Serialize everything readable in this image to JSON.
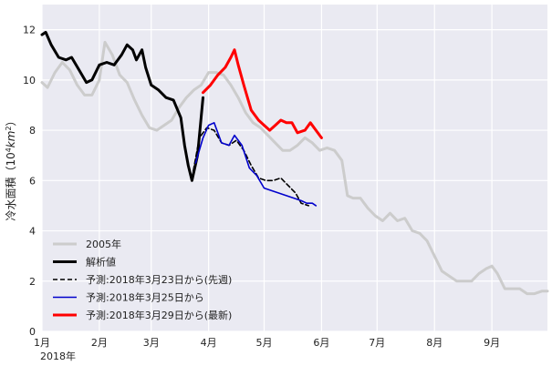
{
  "chart_data": {
    "type": "line",
    "ylabel": "冷水面積（10⁴km²）",
    "ylabel_parts": {
      "prefix": "冷水面積（10",
      "exp": "4",
      "unit": "km",
      "unit_exp": "2",
      "suffix": "）"
    },
    "ylim": [
      0,
      13
    ],
    "yticks": [
      0,
      2,
      4,
      6,
      8,
      10,
      12
    ],
    "x_domain": [
      "2018-01-01",
      "2018-10-01"
    ],
    "xticks": [
      {
        "date": "2018-01-01",
        "label": "1月"
      },
      {
        "date": "2018-02-01",
        "label": "2月"
      },
      {
        "date": "2018-03-01",
        "label": "3月"
      },
      {
        "date": "2018-04-01",
        "label": "4月"
      },
      {
        "date": "2018-05-01",
        "label": "5月"
      },
      {
        "date": "2018-06-01",
        "label": "6月"
      },
      {
        "date": "2018-07-01",
        "label": "7月"
      },
      {
        "date": "2018-08-01",
        "label": "8月"
      },
      {
        "date": "2018-09-01",
        "label": "9月"
      }
    ],
    "year_label": "2018年",
    "grid": true,
    "legend_position": "bottom-left",
    "series": [
      {
        "name": "2005年",
        "color": "#cccccc",
        "width": 3,
        "dash": "",
        "points": [
          [
            "2018-01-01",
            9.9
          ],
          [
            "2018-01-04",
            9.7
          ],
          [
            "2018-01-08",
            10.3
          ],
          [
            "2018-01-12",
            10.7
          ],
          [
            "2018-01-16",
            10.4
          ],
          [
            "2018-01-20",
            9.8
          ],
          [
            "2018-01-24",
            9.4
          ],
          [
            "2018-01-28",
            9.4
          ],
          [
            "2018-02-01",
            10.0
          ],
          [
            "2018-02-04",
            11.5
          ],
          [
            "2018-02-08",
            11.0
          ],
          [
            "2018-02-12",
            10.2
          ],
          [
            "2018-02-16",
            9.9
          ],
          [
            "2018-02-20",
            9.2
          ],
          [
            "2018-02-24",
            8.6
          ],
          [
            "2018-02-28",
            8.1
          ],
          [
            "2018-03-04",
            8.0
          ],
          [
            "2018-03-08",
            8.2
          ],
          [
            "2018-03-12",
            8.4
          ],
          [
            "2018-03-16",
            8.9
          ],
          [
            "2018-03-20",
            9.3
          ],
          [
            "2018-03-24",
            9.6
          ],
          [
            "2018-03-28",
            9.8
          ],
          [
            "2018-04-01",
            10.3
          ],
          [
            "2018-04-05",
            10.3
          ],
          [
            "2018-04-09",
            10.2
          ],
          [
            "2018-04-13",
            9.8
          ],
          [
            "2018-04-17",
            9.3
          ],
          [
            "2018-04-21",
            8.7
          ],
          [
            "2018-04-25",
            8.3
          ],
          [
            "2018-04-29",
            8.1
          ],
          [
            "2018-05-03",
            7.8
          ],
          [
            "2018-05-07",
            7.5
          ],
          [
            "2018-05-11",
            7.2
          ],
          [
            "2018-05-15",
            7.2
          ],
          [
            "2018-05-19",
            7.4
          ],
          [
            "2018-05-23",
            7.7
          ],
          [
            "2018-05-27",
            7.5
          ],
          [
            "2018-05-31",
            7.2
          ],
          [
            "2018-06-04",
            7.3
          ],
          [
            "2018-06-08",
            7.2
          ],
          [
            "2018-06-12",
            6.8
          ],
          [
            "2018-06-15",
            5.4
          ],
          [
            "2018-06-18",
            5.3
          ],
          [
            "2018-06-22",
            5.3
          ],
          [
            "2018-06-26",
            4.9
          ],
          [
            "2018-06-30",
            4.6
          ],
          [
            "2018-07-04",
            4.4
          ],
          [
            "2018-07-08",
            4.7
          ],
          [
            "2018-07-12",
            4.4
          ],
          [
            "2018-07-16",
            4.5
          ],
          [
            "2018-07-20",
            4.0
          ],
          [
            "2018-07-24",
            3.9
          ],
          [
            "2018-07-28",
            3.6
          ],
          [
            "2018-08-01",
            3.0
          ],
          [
            "2018-08-05",
            2.4
          ],
          [
            "2018-08-09",
            2.2
          ],
          [
            "2018-08-13",
            2.0
          ],
          [
            "2018-08-17",
            2.0
          ],
          [
            "2018-08-21",
            2.0
          ],
          [
            "2018-08-25",
            2.3
          ],
          [
            "2018-08-29",
            2.5
          ],
          [
            "2018-09-01",
            2.6
          ],
          [
            "2018-09-04",
            2.3
          ],
          [
            "2018-09-08",
            1.7
          ],
          [
            "2018-09-12",
            1.7
          ],
          [
            "2018-09-16",
            1.7
          ],
          [
            "2018-09-20",
            1.5
          ],
          [
            "2018-09-24",
            1.5
          ],
          [
            "2018-09-28",
            1.6
          ],
          [
            "2018-10-01",
            1.6
          ]
        ]
      },
      {
        "name": "解析値",
        "color": "#000000",
        "width": 3,
        "dash": "",
        "points": [
          [
            "2018-01-01",
            11.8
          ],
          [
            "2018-01-03",
            11.9
          ],
          [
            "2018-01-06",
            11.4
          ],
          [
            "2018-01-10",
            10.9
          ],
          [
            "2018-01-14",
            10.8
          ],
          [
            "2018-01-17",
            10.9
          ],
          [
            "2018-01-21",
            10.4
          ],
          [
            "2018-01-25",
            9.9
          ],
          [
            "2018-01-28",
            10.0
          ],
          [
            "2018-02-01",
            10.6
          ],
          [
            "2018-02-05",
            10.7
          ],
          [
            "2018-02-09",
            10.6
          ],
          [
            "2018-02-13",
            11.0
          ],
          [
            "2018-02-16",
            11.4
          ],
          [
            "2018-02-19",
            11.2
          ],
          [
            "2018-02-21",
            10.8
          ],
          [
            "2018-02-24",
            11.2
          ],
          [
            "2018-02-26",
            10.5
          ],
          [
            "2018-03-01",
            9.8
          ],
          [
            "2018-03-05",
            9.6
          ],
          [
            "2018-03-09",
            9.3
          ],
          [
            "2018-03-13",
            9.2
          ],
          [
            "2018-03-17",
            8.5
          ],
          [
            "2018-03-19",
            7.4
          ],
          [
            "2018-03-21",
            6.6
          ],
          [
            "2018-03-23",
            6.0
          ],
          [
            "2018-03-26",
            7.0
          ],
          [
            "2018-03-29",
            9.3
          ]
        ]
      },
      {
        "name": "予測:2018年3月23日から(先週)",
        "color": "#000000",
        "width": 1.6,
        "dash": "5,3",
        "points": [
          [
            "2018-03-23",
            6.1
          ],
          [
            "2018-03-27",
            7.7
          ],
          [
            "2018-03-31",
            8.1
          ],
          [
            "2018-04-04",
            8.0
          ],
          [
            "2018-04-08",
            7.5
          ],
          [
            "2018-04-12",
            7.4
          ],
          [
            "2018-04-16",
            7.6
          ],
          [
            "2018-04-20",
            7.2
          ],
          [
            "2018-04-24",
            6.6
          ],
          [
            "2018-04-28",
            6.1
          ],
          [
            "2018-05-02",
            6.0
          ],
          [
            "2018-05-06",
            6.0
          ],
          [
            "2018-05-10",
            6.1
          ],
          [
            "2018-05-14",
            5.8
          ],
          [
            "2018-05-18",
            5.5
          ],
          [
            "2018-05-21",
            5.1
          ],
          [
            "2018-05-25",
            5.0
          ]
        ]
      },
      {
        "name": "予測:2018年3月25日から",
        "color": "#0000cc",
        "width": 1.6,
        "dash": "",
        "points": [
          [
            "2018-03-25",
            6.7
          ],
          [
            "2018-03-29",
            7.7
          ],
          [
            "2018-04-01",
            8.2
          ],
          [
            "2018-04-04",
            8.3
          ],
          [
            "2018-04-08",
            7.5
          ],
          [
            "2018-04-12",
            7.4
          ],
          [
            "2018-04-15",
            7.8
          ],
          [
            "2018-04-19",
            7.4
          ],
          [
            "2018-04-23",
            6.5
          ],
          [
            "2018-04-27",
            6.2
          ],
          [
            "2018-05-01",
            5.7
          ],
          [
            "2018-05-05",
            5.6
          ],
          [
            "2018-05-09",
            5.5
          ],
          [
            "2018-05-13",
            5.4
          ],
          [
            "2018-05-17",
            5.3
          ],
          [
            "2018-05-21",
            5.2
          ],
          [
            "2018-05-24",
            5.1
          ],
          [
            "2018-05-27",
            5.1
          ],
          [
            "2018-05-29",
            5.0
          ]
        ]
      },
      {
        "name": "予測:2018年3月29日から(最新)",
        "color": "#ff0000",
        "width": 3,
        "dash": "",
        "points": [
          [
            "2018-03-29",
            9.5
          ],
          [
            "2018-04-02",
            9.8
          ],
          [
            "2018-04-06",
            10.2
          ],
          [
            "2018-04-10",
            10.5
          ],
          [
            "2018-04-13",
            10.9
          ],
          [
            "2018-04-15",
            11.2
          ],
          [
            "2018-04-17",
            10.6
          ],
          [
            "2018-04-20",
            9.8
          ],
          [
            "2018-04-24",
            8.8
          ],
          [
            "2018-04-28",
            8.4
          ],
          [
            "2018-05-01",
            8.2
          ],
          [
            "2018-05-04",
            8.0
          ],
          [
            "2018-05-07",
            8.2
          ],
          [
            "2018-05-10",
            8.4
          ],
          [
            "2018-05-13",
            8.3
          ],
          [
            "2018-05-16",
            8.3
          ],
          [
            "2018-05-19",
            7.9
          ],
          [
            "2018-05-23",
            8.0
          ],
          [
            "2018-05-26",
            8.3
          ],
          [
            "2018-05-29",
            8.0
          ],
          [
            "2018-06-01",
            7.7
          ]
        ]
      }
    ]
  }
}
